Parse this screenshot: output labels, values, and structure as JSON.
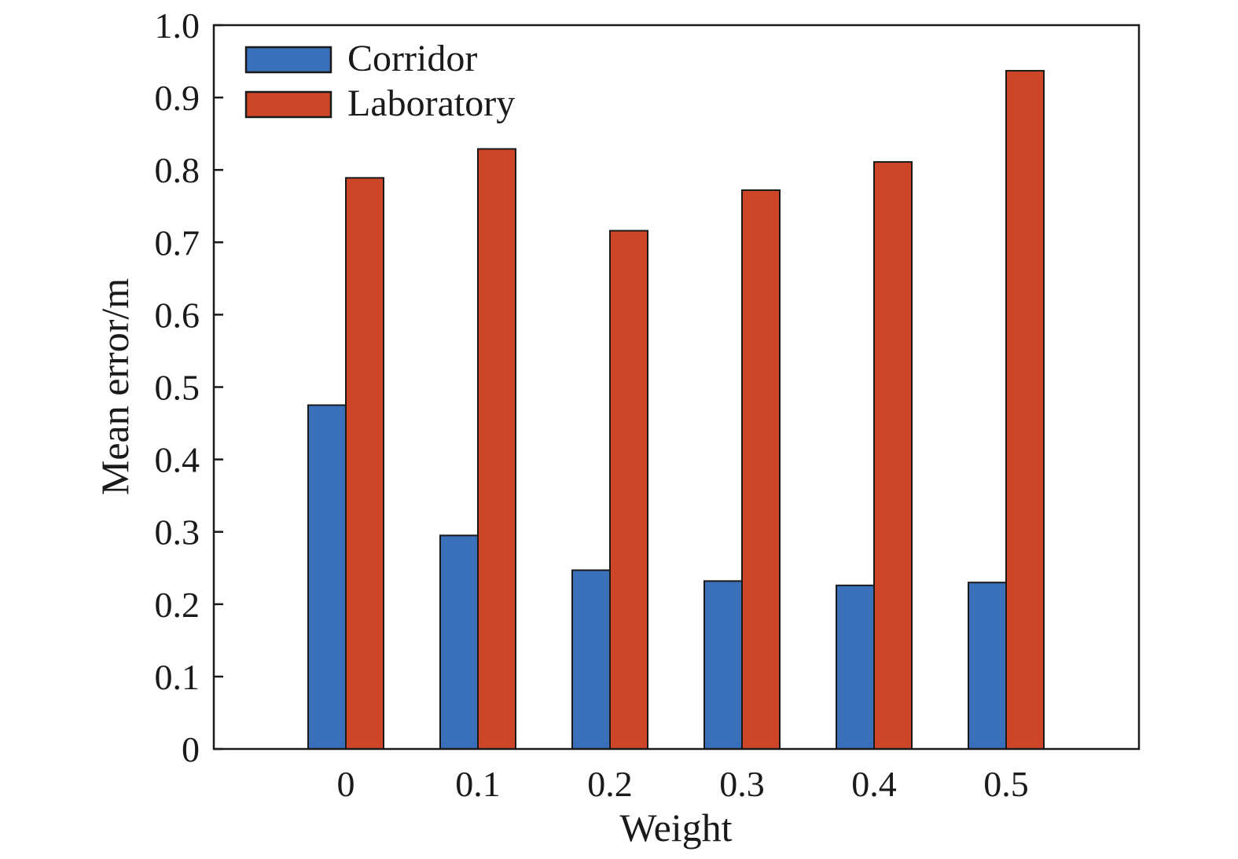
{
  "chart_data": {
    "type": "bar",
    "xlabel": "Weight",
    "ylabel": "Mean error/m",
    "categories": [
      "0",
      "0.1",
      "0.2",
      "0.3",
      "0.4",
      "0.5"
    ],
    "ylim": [
      0,
      1.0
    ],
    "yticks": [
      "0",
      "0.1",
      "0.2",
      "0.3",
      "0.4",
      "0.5",
      "0.6",
      "0.7",
      "0.8",
      "0.9",
      "1.0"
    ],
    "legend_position": "top-left",
    "grid": false,
    "series": [
      {
        "name": "Corridor",
        "color": "#3A6FBA",
        "values": [
          0.475,
          0.295,
          0.247,
          0.232,
          0.226,
          0.23
        ]
      },
      {
        "name": "Laboratory",
        "color": "#CD4628",
        "values": [
          0.789,
          0.829,
          0.716,
          0.772,
          0.811,
          0.937
        ]
      }
    ]
  }
}
